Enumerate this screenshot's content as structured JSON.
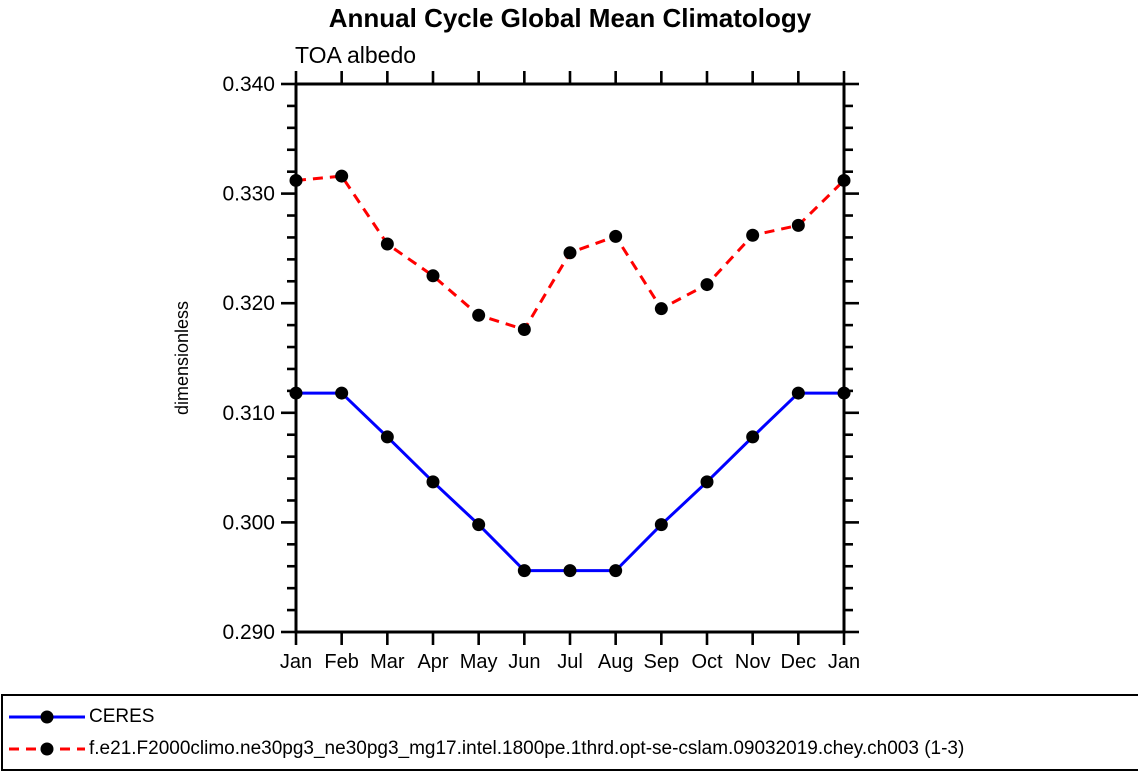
{
  "chart": {
    "title": "Annual Cycle Global Mean Climatology",
    "subtitle": "TOA albedo",
    "ylabel": "dimensionless"
  },
  "chart_data": {
    "type": "line",
    "title": "Annual Cycle Global Mean Climatology",
    "subtitle": "TOA albedo",
    "xlabel": "",
    "ylabel": "dimensionless",
    "categories": [
      "Jan",
      "Feb",
      "Mar",
      "Apr",
      "May",
      "Jun",
      "Jul",
      "Aug",
      "Sep",
      "Oct",
      "Nov",
      "Dec",
      "Jan"
    ],
    "ylim": [
      0.29,
      0.34
    ],
    "ytick_major": 0.01,
    "ytick_minor": 0.002,
    "ytick_label_format_decimals": 3,
    "grid": false,
    "legend_position": "bottom",
    "frame_color": "#000000",
    "marker_color": "#000000",
    "series": [
      {
        "name": "CERES",
        "color": "#0000ff",
        "style": "solid",
        "marker": "circle",
        "values": [
          0.3118,
          0.3118,
          0.3078,
          0.3037,
          0.2998,
          0.2956,
          0.2956,
          0.2956,
          0.2998,
          0.3037,
          0.3078,
          0.3118,
          0.3118
        ]
      },
      {
        "name": "f.e21.F2000climo.ne30pg3_ne30pg3_mg17.intel.1800pe.1thrd.opt-se-cslam.09032019.chey.ch003 (1-3)",
        "color": "#ff0000",
        "style": "dashed",
        "marker": "circle",
        "values": [
          0.3312,
          0.3316,
          0.3254,
          0.3225,
          0.3189,
          0.3176,
          0.3246,
          0.3261,
          0.3195,
          0.3217,
          0.3262,
          0.3271,
          0.3312
        ]
      }
    ]
  }
}
